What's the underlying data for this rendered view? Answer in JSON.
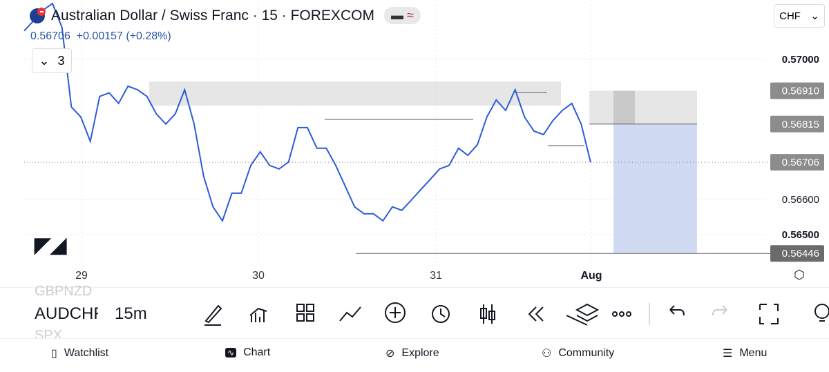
{
  "header": {
    "symbol": "Australian Dollar / Swiss Franc · 15 · FOREXCOM",
    "last_price": "0.56706",
    "change": "+0.00157 (+0.28%)",
    "indicator_count": "3",
    "currency": "CHF"
  },
  "chart_data": {
    "type": "line",
    "color": "#2a5bd7",
    "time_labels": [
      "29",
      "30",
      "31",
      "Aug"
    ],
    "values": [
      0.57081,
      0.5711,
      0.5714,
      0.57159,
      0.57091,
      0.56864,
      0.56835,
      0.56766,
      0.56894,
      0.56904,
      0.56874,
      0.56923,
      0.56913,
      0.56894,
      0.56844,
      0.56815,
      0.56844,
      0.56913,
      0.56815,
      0.56667,
      0.56579,
      0.56539,
      0.56618,
      0.56618,
      0.56697,
      0.56736,
      0.56697,
      0.56687,
      0.56707,
      0.56805,
      0.56805,
      0.56746,
      0.56746,
      0.56697,
      0.56638,
      0.56579,
      0.56559,
      0.56559,
      0.56539,
      0.56579,
      0.56569,
      0.56598,
      0.56628,
      0.56657,
      0.56687,
      0.56697,
      0.56746,
      0.56726,
      0.56756,
      0.56835,
      0.56884,
      0.56854,
      0.56913,
      0.56835,
      0.56795,
      0.56785,
      0.56825,
      0.56854,
      0.56874,
      0.56815,
      0.56706
    ],
    "ylim": [
      0.56411,
      0.57169
    ],
    "yticks": [
      {
        "value": 0.57,
        "label": "0.57000"
      },
      {
        "value": 0.566,
        "label": "0.56600"
      },
      {
        "value": 0.565,
        "label": "0.56500"
      }
    ],
    "price_labels": [
      {
        "value": 0.5691,
        "label": "0.56910"
      },
      {
        "value": 0.56815,
        "label": "0.56815"
      },
      {
        "value": 0.56706,
        "label": "0.56706"
      },
      {
        "value": 0.56446,
        "label": "0.56446"
      }
    ]
  },
  "toolbar": {
    "watchlist_prev": "GBPNZD",
    "symbol": "AUDCHF",
    "watchlist_next": "SPX",
    "interval": "15m"
  },
  "nav": [
    "Watchlist",
    "Chart",
    "Explore",
    "Community",
    "Menu"
  ]
}
